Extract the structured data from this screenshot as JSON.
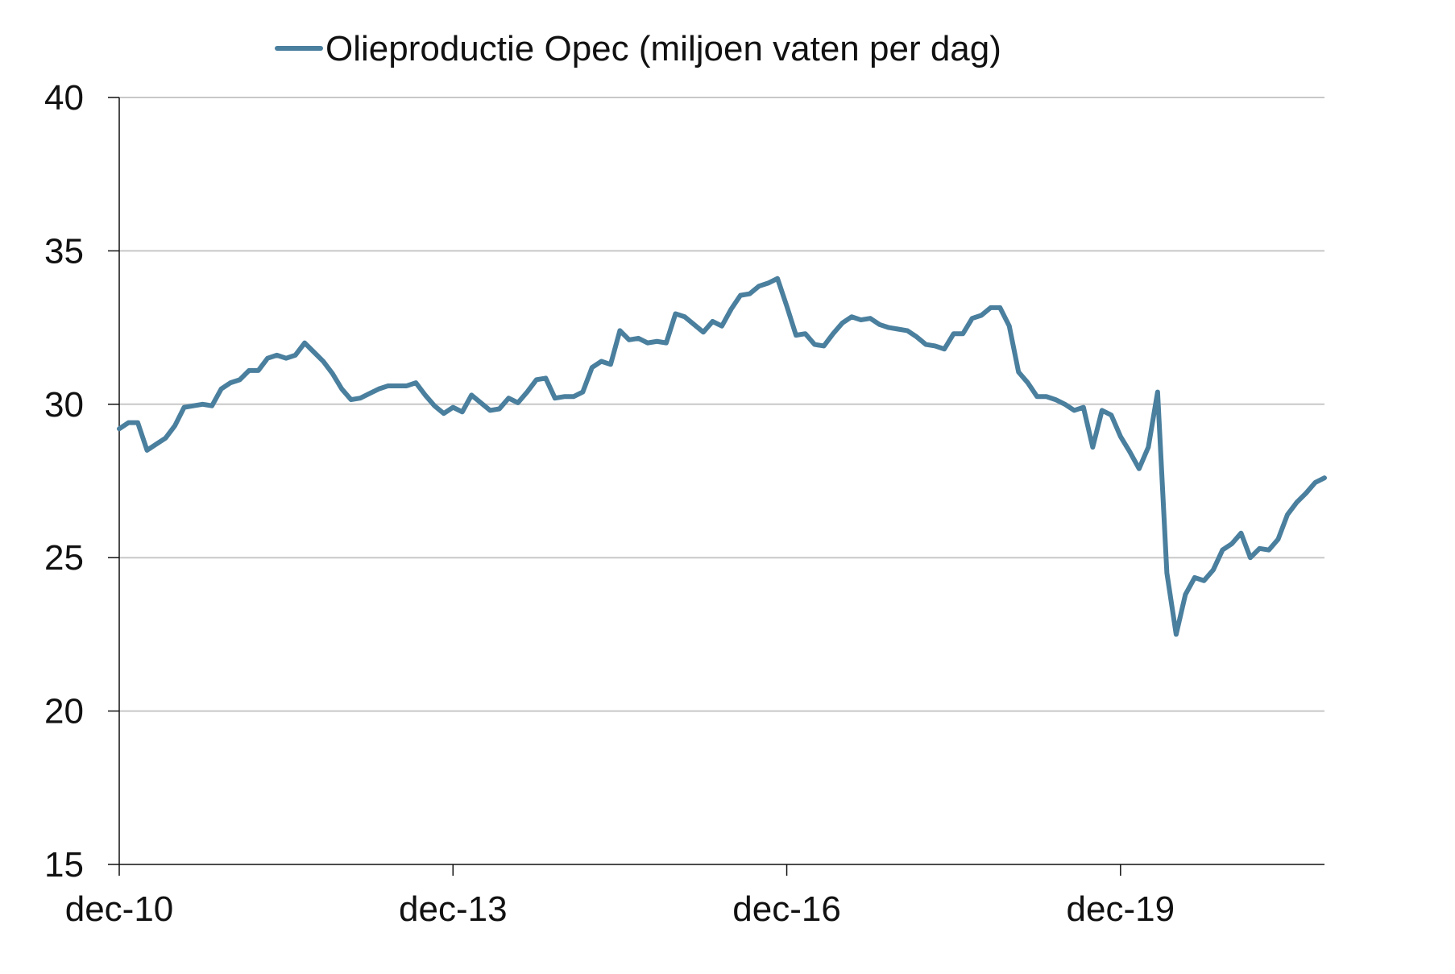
{
  "legend": {
    "label": "Olieproductie Opec (miljoen vaten per dag)"
  },
  "colors": {
    "series": "#4a7f9e",
    "grid": "#c8c8c8",
    "axis": "#111111"
  },
  "chart_data": {
    "type": "line",
    "title": "",
    "xlabel": "",
    "ylabel": "",
    "ylim": [
      15,
      40
    ],
    "yticks": [
      15,
      20,
      25,
      30,
      35,
      40
    ],
    "xlim": [
      0,
      130
    ],
    "xticks": [
      {
        "label": "dec-10",
        "x": 0
      },
      {
        "label": "dec-13",
        "x": 36
      },
      {
        "label": "dec-16",
        "x": 72
      },
      {
        "label": "dec-19",
        "x": 108
      }
    ],
    "grid": true,
    "legend_position": "top-center",
    "series": [
      {
        "name": "Olieproductie Opec (miljoen vaten per dag)",
        "x": [
          0,
          1,
          2,
          3,
          4,
          5,
          6,
          7,
          8,
          9,
          10,
          11,
          12,
          13,
          14,
          15,
          16,
          17,
          18,
          19,
          20,
          21,
          22,
          23,
          24,
          25,
          26,
          27,
          28,
          29,
          30,
          31,
          32,
          33,
          34,
          35,
          36,
          37,
          38,
          39,
          40,
          41,
          42,
          43,
          44,
          45,
          46,
          47,
          48,
          49,
          50,
          51,
          52,
          53,
          54,
          55,
          56,
          57,
          58,
          59,
          60,
          61,
          62,
          63,
          64,
          65,
          66,
          67,
          68,
          69,
          70,
          71,
          72,
          73,
          74,
          75,
          76,
          77,
          78,
          79,
          80,
          81,
          82,
          83,
          84,
          85,
          86,
          87,
          88,
          89,
          90,
          91,
          92,
          93,
          94,
          95,
          96,
          97,
          98,
          99,
          100,
          101,
          102,
          103,
          104,
          105,
          106,
          107,
          108,
          109,
          110,
          111,
          112,
          113,
          114,
          115,
          116,
          117,
          118,
          119,
          120,
          121,
          122,
          123,
          124,
          125,
          126,
          127,
          128,
          129,
          130
        ],
        "values": [
          29.2,
          29.4,
          29.4,
          28.5,
          28.7,
          28.9,
          29.3,
          29.9,
          29.95,
          30.0,
          29.95,
          30.5,
          30.7,
          30.8,
          31.1,
          31.1,
          31.5,
          31.6,
          31.5,
          31.6,
          32.0,
          31.7,
          31.4,
          31.0,
          30.5,
          30.15,
          30.2,
          30.35,
          30.5,
          30.6,
          30.6,
          30.6,
          30.7,
          30.3,
          29.95,
          29.7,
          29.9,
          29.75,
          30.3,
          30.05,
          29.8,
          29.85,
          30.2,
          30.05,
          30.4,
          30.8,
          30.85,
          30.2,
          30.25,
          30.25,
          30.4,
          31.2,
          31.4,
          31.3,
          32.4,
          32.1,
          32.15,
          32.0,
          32.05,
          32.0,
          32.95,
          32.85,
          32.6,
          32.35,
          32.7,
          32.55,
          33.1,
          33.55,
          33.6,
          33.85,
          33.95,
          34.1,
          33.2,
          32.25,
          32.3,
          31.95,
          31.9,
          32.3,
          32.65,
          32.85,
          32.75,
          32.8,
          32.6,
          32.5,
          32.45,
          32.4,
          32.2,
          31.95,
          31.9,
          31.8,
          32.3,
          32.3,
          32.8,
          32.9,
          33.15,
          33.15,
          32.55,
          31.05,
          30.7,
          30.25,
          30.25,
          30.15,
          30.0,
          29.8,
          29.9,
          28.6,
          29.8,
          29.65,
          28.95,
          28.45,
          27.9,
          28.6,
          30.4,
          24.5,
          22.5,
          23.8,
          24.35,
          24.25,
          24.6,
          25.25,
          25.45,
          25.8,
          25.0,
          25.3,
          25.25,
          25.6,
          26.4,
          26.8,
          27.1,
          27.45,
          27.6
        ]
      }
    ]
  }
}
